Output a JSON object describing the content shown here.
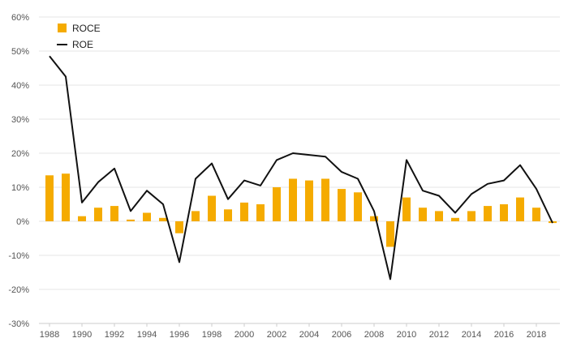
{
  "chart_data": {
    "type": "bar",
    "x": [
      1988,
      1989,
      1990,
      1991,
      1992,
      1993,
      1994,
      1995,
      1996,
      1997,
      1998,
      1999,
      2000,
      2001,
      2002,
      2003,
      2004,
      2005,
      2006,
      2007,
      2008,
      2009,
      2010,
      2011,
      2012,
      2013,
      2014,
      2015,
      2016,
      2017,
      2018,
      2019
    ],
    "xtick_labels": [
      "1988",
      "1990",
      "1992",
      "1994",
      "1996",
      "1998",
      "2000",
      "2002",
      "2004",
      "2006",
      "2008",
      "2010",
      "2012",
      "2014",
      "2016",
      "2018"
    ],
    "ytick_labels": [
      "60%",
      "50%",
      "40%",
      "30%",
      "20%",
      "10%",
      "0%",
      "-10%",
      "-20%",
      "-30%"
    ],
    "ylim": [
      -30,
      60
    ],
    "grid": true,
    "legend_position": "top-left",
    "series": [
      {
        "name": "ROCE",
        "kind": "bar",
        "color": "#f5ab00",
        "values": [
          13.5,
          14,
          1.5,
          4,
          4.5,
          0.5,
          2.5,
          1,
          -3.5,
          3,
          7.5,
          3.5,
          5.5,
          5,
          10,
          12.5,
          12,
          12.5,
          9.5,
          8.5,
          1.5,
          -7.5,
          7,
          4,
          3,
          1,
          3,
          4.5,
          5,
          7,
          4,
          -0.5
        ]
      },
      {
        "name": "ROE",
        "kind": "line",
        "color": "#111111",
        "values": [
          48.5,
          42.5,
          5.5,
          11.5,
          15.5,
          3,
          9,
          5,
          -12,
          12.5,
          17,
          6.5,
          12,
          10.5,
          18,
          20,
          19.5,
          19,
          14.5,
          12.5,
          3,
          -17,
          18,
          9,
          7.5,
          2.5,
          8,
          11,
          12,
          16.5,
          9.5,
          -0.5
        ]
      }
    ]
  }
}
